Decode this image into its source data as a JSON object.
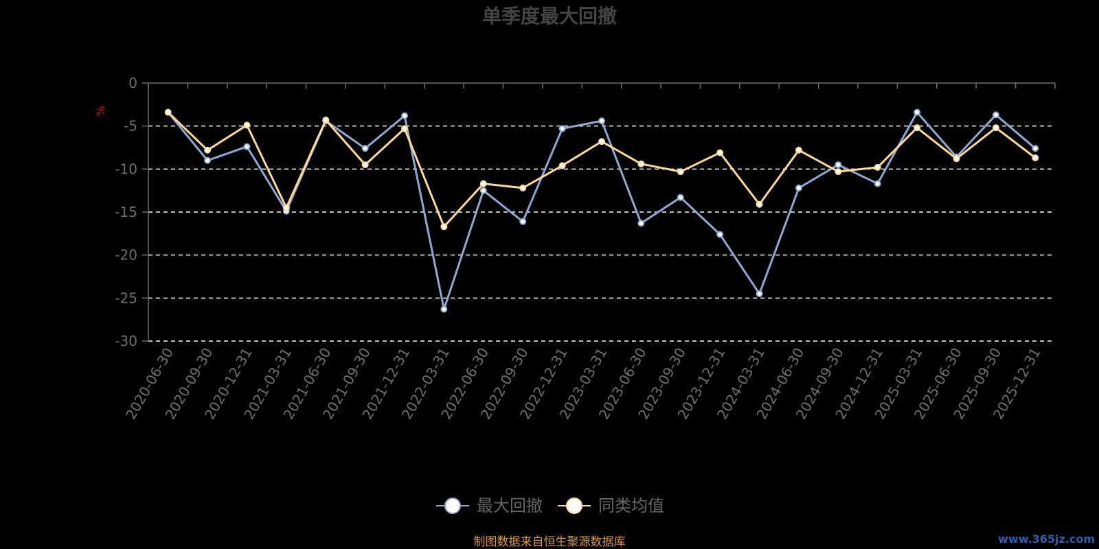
{
  "chart_data": {
    "type": "line",
    "title": "单季度最大回撤",
    "ylabel": "%",
    "ylim": [
      -30,
      0
    ],
    "yticks": [
      0,
      -5,
      -10,
      -15,
      -20,
      -25,
      -30
    ],
    "grid": "horizontal dashed",
    "legend_position": "bottom",
    "categories": [
      "2020-06-30",
      "2020-09-30",
      "2020-12-31",
      "2021-03-31",
      "2021-06-30",
      "2021-09-30",
      "2021-12-31",
      "2022-03-31",
      "2022-06-30",
      "2022-09-30",
      "2022-12-31",
      "2023-03-31",
      "2023-06-30",
      "2023-09-30",
      "2023-12-31",
      "2024-03-31",
      "2024-06-30",
      "2024-09-30",
      "2024-12-31",
      "2025-03-31",
      "2025-06-30",
      "2025-09-30",
      "2025-12-31"
    ],
    "series": [
      {
        "name": "最大回撤",
        "color": "#8fa9d4",
        "values": [
          -3.4,
          -9.0,
          -7.4,
          -14.9,
          -4.4,
          -7.6,
          -3.8,
          -26.3,
          -12.5,
          -16.1,
          -5.3,
          -4.4,
          -16.3,
          -13.3,
          -17.6,
          -24.5,
          -12.2,
          -9.5,
          -11.7,
          -3.4,
          -8.6,
          -3.7,
          -7.6
        ]
      },
      {
        "name": "同类均值",
        "color": "#ffd993",
        "values": [
          -3.4,
          -7.8,
          -4.9,
          -14.5,
          -4.3,
          -9.5,
          -5.3,
          -16.7,
          -11.7,
          -12.2,
          -9.6,
          -6.8,
          -9.4,
          -10.3,
          -8.1,
          -14.1,
          -7.8,
          -10.3,
          -9.8,
          -5.2,
          -8.8,
          -5.2,
          -8.7
        ]
      }
    ]
  },
  "footer": {
    "source_text": "制图数据来自恒生聚源数据库",
    "source_color": "#d99a3a",
    "watermark": "www.365jz.com"
  },
  "colors": {
    "unit_color": "#cc1111",
    "axis_color": "#6f6f6f",
    "grid_color": "#ffffff"
  }
}
